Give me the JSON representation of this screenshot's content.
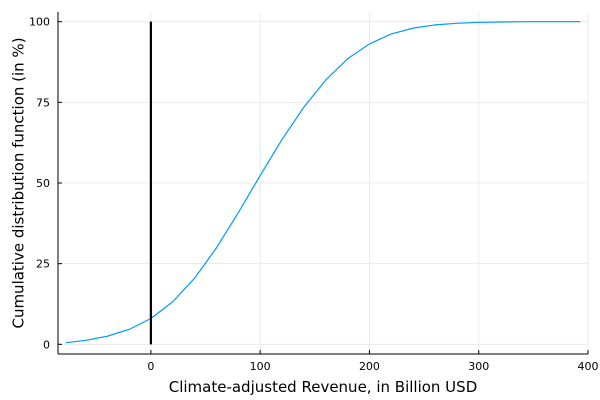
{
  "chart_data": {
    "type": "line",
    "title": "",
    "xlabel": "Climate-adjusted Revenue, in Billion USD",
    "ylabel": "Cumulative distribution function (in %)",
    "xlim": [
      -85,
      400
    ],
    "ylim": [
      -3,
      103
    ],
    "xticks": [
      0,
      100,
      200,
      300,
      400
    ],
    "yticks": [
      0,
      25,
      50,
      75,
      100
    ],
    "grid": true,
    "legend": "none",
    "series": [
      {
        "color": "#009AFA",
        "x": [
          -78,
          -60,
          -40,
          -20,
          0,
          20,
          40,
          60,
          80,
          100,
          120,
          140,
          160,
          180,
          200,
          220,
          240,
          260,
          280,
          300,
          320,
          340,
          360,
          380,
          393
        ],
        "y": [
          0.5,
          1.2,
          2.5,
          4.6,
          8.0,
          13.2,
          20.5,
          29.9,
          40.8,
          52.3,
          63.5,
          73.5,
          81.9,
          88.5,
          93.1,
          96.2,
          98.0,
          99.0,
          99.5,
          99.8,
          99.9,
          100.0,
          100.0,
          100.0,
          100.0
        ]
      }
    ],
    "vertical_line": {
      "x": 0,
      "y_range": [
        0,
        100
      ],
      "color": "#000000"
    }
  }
}
